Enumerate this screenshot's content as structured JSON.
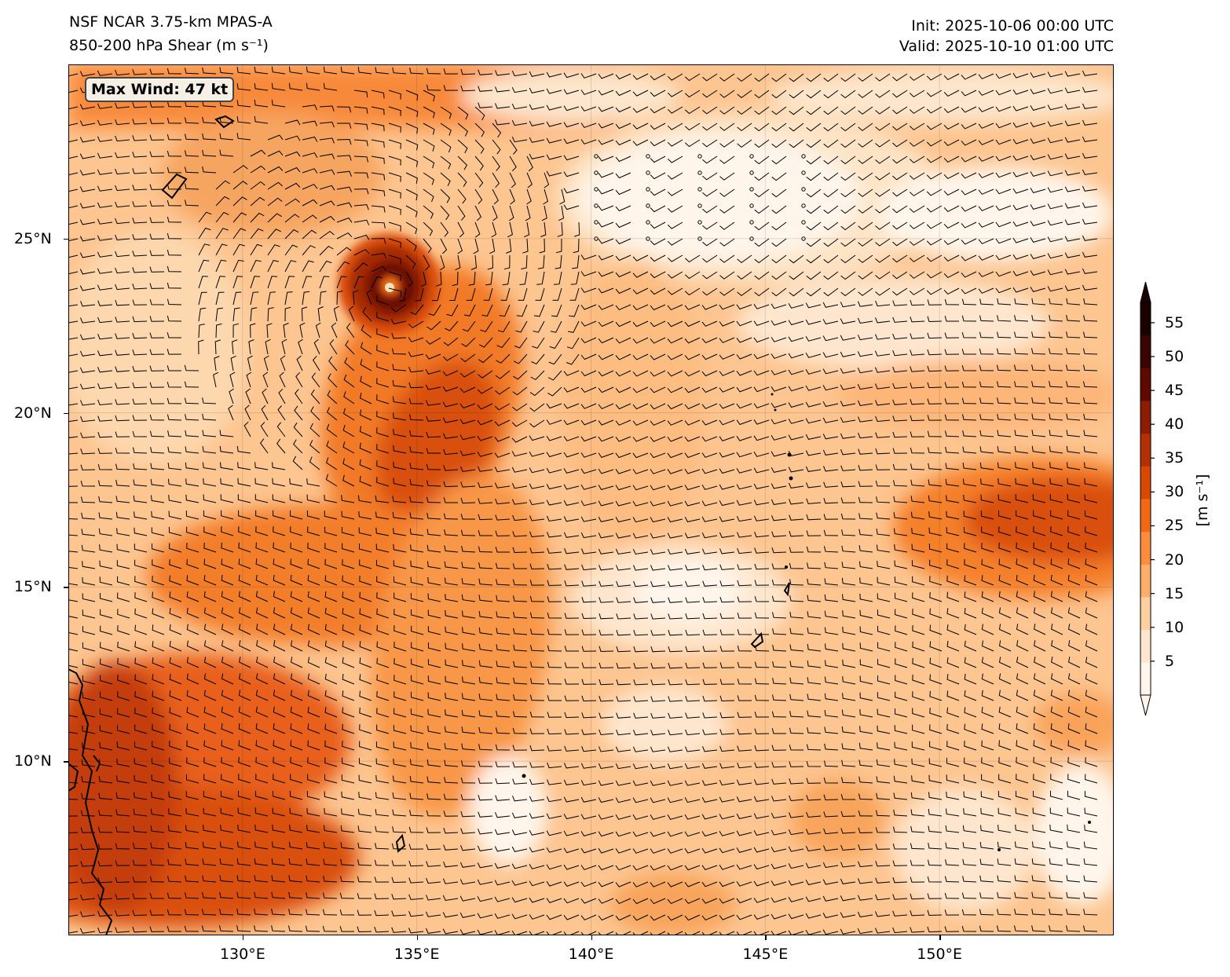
{
  "header": {
    "model": "NSF NCAR 3.75-km MPAS-A",
    "field": "850-200 hPa Shear (m s⁻¹)",
    "init": "Init: 2025-10-06 00:00 UTC",
    "valid": "Valid: 2025-10-10 01:00 UTC"
  },
  "annotation": {
    "max_wind": "Max Wind: 47 kt"
  },
  "map": {
    "lon_range": [
      125,
      155
    ],
    "lat_range": [
      5,
      30
    ],
    "lon_ticks": [
      {
        "value": 130,
        "label": "130°E"
      },
      {
        "value": 135,
        "label": "135°E"
      },
      {
        "value": 140,
        "label": "140°E"
      },
      {
        "value": 145,
        "label": "145°E"
      },
      {
        "value": 150,
        "label": "150°E"
      }
    ],
    "lat_ticks": [
      {
        "value": 10,
        "label": "10°N"
      },
      {
        "value": 15,
        "label": "15°N"
      },
      {
        "value": 20,
        "label": "20°N"
      },
      {
        "value": 25,
        "label": "25°N"
      }
    ],
    "cyclone_center": {
      "lon": 134.2,
      "lat": 23.5
    }
  },
  "colorbar": {
    "ticks": [
      5,
      10,
      15,
      20,
      25,
      30,
      35,
      40,
      45,
      50,
      55
    ],
    "range": [
      0,
      58
    ],
    "unit": "[m s⁻¹]",
    "colors": [
      "#fff5eb",
      "#fee6ce",
      "#fdd0a2",
      "#fdae6b",
      "#fd8d3c",
      "#f16913",
      "#d94801",
      "#b33005",
      "#8c1d04",
      "#5e0a02",
      "#3a0500",
      "#1a0200"
    ]
  }
}
